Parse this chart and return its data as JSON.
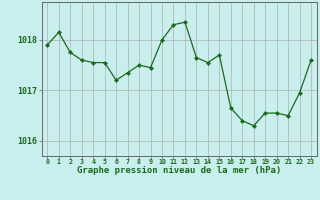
{
  "x": [
    0,
    1,
    2,
    3,
    4,
    5,
    6,
    7,
    8,
    9,
    10,
    11,
    12,
    13,
    14,
    15,
    16,
    17,
    18,
    19,
    20,
    21,
    22,
    23
  ],
  "y": [
    1017.9,
    1018.15,
    1017.75,
    1017.6,
    1017.55,
    1017.55,
    1017.2,
    1017.35,
    1017.5,
    1017.45,
    1018.0,
    1018.3,
    1018.35,
    1017.65,
    1017.55,
    1017.7,
    1016.65,
    1016.4,
    1016.3,
    1016.55,
    1016.55,
    1016.5,
    1016.95,
    1017.6
  ],
  "line_color": "#1a6b1a",
  "marker": "D",
  "marker_size": 2.0,
  "bg_color": "#c8eeee",
  "grid_color": "#b0b0b0",
  "xlabel": "Graphe pression niveau de la mer (hPa)",
  "xlabel_color": "#1a6b1a",
  "tick_color": "#1a6b1a",
  "axis_color": "#666666",
  "ylim": [
    1015.7,
    1018.75
  ],
  "yticks": [
    1016,
    1017,
    1018
  ],
  "xlim": [
    -0.5,
    23.5
  ],
  "xticks": [
    0,
    1,
    2,
    3,
    4,
    5,
    6,
    7,
    8,
    9,
    10,
    11,
    12,
    13,
    14,
    15,
    16,
    17,
    18,
    19,
    20,
    21,
    22,
    23
  ],
  "xlabel_fontsize": 6.5,
  "ytick_fontsize": 6.0,
  "xtick_fontsize": 4.8
}
